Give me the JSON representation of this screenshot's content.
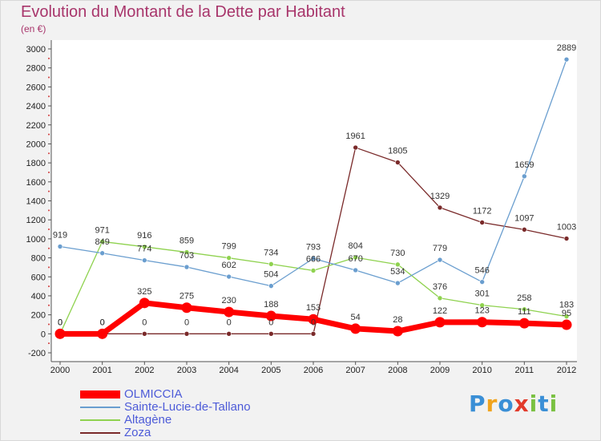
{
  "title": "Evolution du Montant de la Dette par Habitant",
  "subtitle": "(en €)",
  "brand": [
    "P",
    "r",
    "o",
    "x",
    "i",
    "t",
    "i"
  ],
  "chart_data": {
    "type": "line",
    "title": "Evolution du Montant de la Dette par Habitant",
    "subtitle": "(en €)",
    "xlabel": "",
    "ylabel": "",
    "x": [
      "2000",
      "2001",
      "2002",
      "2003",
      "2004",
      "2005",
      "2006",
      "2007",
      "2008",
      "2009",
      "2010",
      "2011",
      "2012"
    ],
    "ylim": [
      -200,
      3000
    ],
    "yticks": [
      -200,
      0,
      200,
      400,
      600,
      800,
      1000,
      1200,
      1400,
      1600,
      1800,
      2000,
      2200,
      2400,
      2600,
      2800,
      3000
    ],
    "grid": "none",
    "legend_position": "bottom-left",
    "series": [
      {
        "name": "OLMICCIA",
        "color": "#ff0000",
        "values": [
          0,
          0,
          325,
          275,
          230,
          188,
          153,
          54,
          28,
          122,
          123,
          111,
          95
        ]
      },
      {
        "name": "Sainte-Lucie-de-Tallano",
        "color": "#6a9ecf",
        "values": [
          919,
          849,
          774,
          703,
          602,
          504,
          793,
          670,
          534,
          779,
          546,
          1659,
          2889
        ]
      },
      {
        "name": "Altagène",
        "color": "#8fd24f",
        "values": [
          0,
          971,
          916,
          859,
          799,
          734,
          666,
          804,
          730,
          376,
          301,
          258,
          183
        ]
      },
      {
        "name": "Zoza",
        "color": "#7a2a2a",
        "values": [
          0,
          0,
          0,
          0,
          0,
          0,
          0,
          1961,
          1805,
          1329,
          1172,
          1097,
          1003
        ]
      }
    ]
  }
}
